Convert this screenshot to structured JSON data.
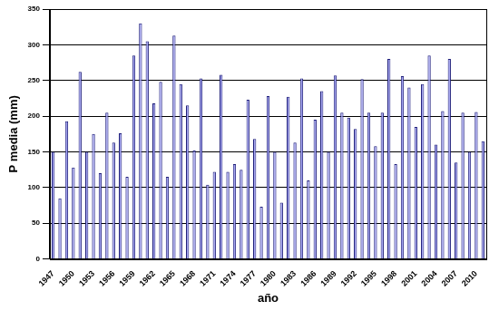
{
  "chart_data": {
    "type": "bar",
    "x_label": "año",
    "y_label": "P media (mm)",
    "categories": [
      "1947",
      null,
      null,
      "1950",
      null,
      null,
      "1953",
      null,
      null,
      "1956",
      null,
      null,
      "1959",
      null,
      null,
      "1962",
      null,
      null,
      "1965",
      null,
      null,
      "1968",
      null,
      null,
      "1971",
      null,
      null,
      "1974",
      null,
      null,
      "1977",
      null,
      null,
      "1980",
      null,
      null,
      "1983",
      null,
      null,
      "1986",
      null,
      null,
      "1989",
      null,
      null,
      "1992",
      null,
      null,
      "1995",
      null,
      null,
      "1998",
      null,
      null,
      "2001",
      null,
      null,
      "2004",
      null,
      null,
      "2007",
      null,
      null,
      "2010",
      null
    ],
    "values": [
      150,
      85,
      193,
      128,
      262,
      150,
      175,
      120,
      205,
      163,
      176,
      115,
      285,
      330,
      305,
      218,
      248,
      115,
      313,
      245,
      215,
      152,
      253,
      104,
      122,
      258,
      122,
      133,
      125,
      223,
      168,
      73,
      228,
      150,
      79,
      227,
      163,
      253,
      110,
      195,
      235,
      150,
      257,
      205,
      198,
      182,
      252,
      205,
      158,
      205,
      280,
      133,
      256,
      240,
      185,
      245,
      285,
      160,
      207,
      280,
      135,
      205,
      150,
      206,
      165
    ],
    "color": "#a5a5f0",
    "ylim": [
      0,
      350
    ],
    "yticks": [
      0,
      50,
      100,
      150,
      200,
      250,
      300,
      350
    ],
    "grid": true
  }
}
